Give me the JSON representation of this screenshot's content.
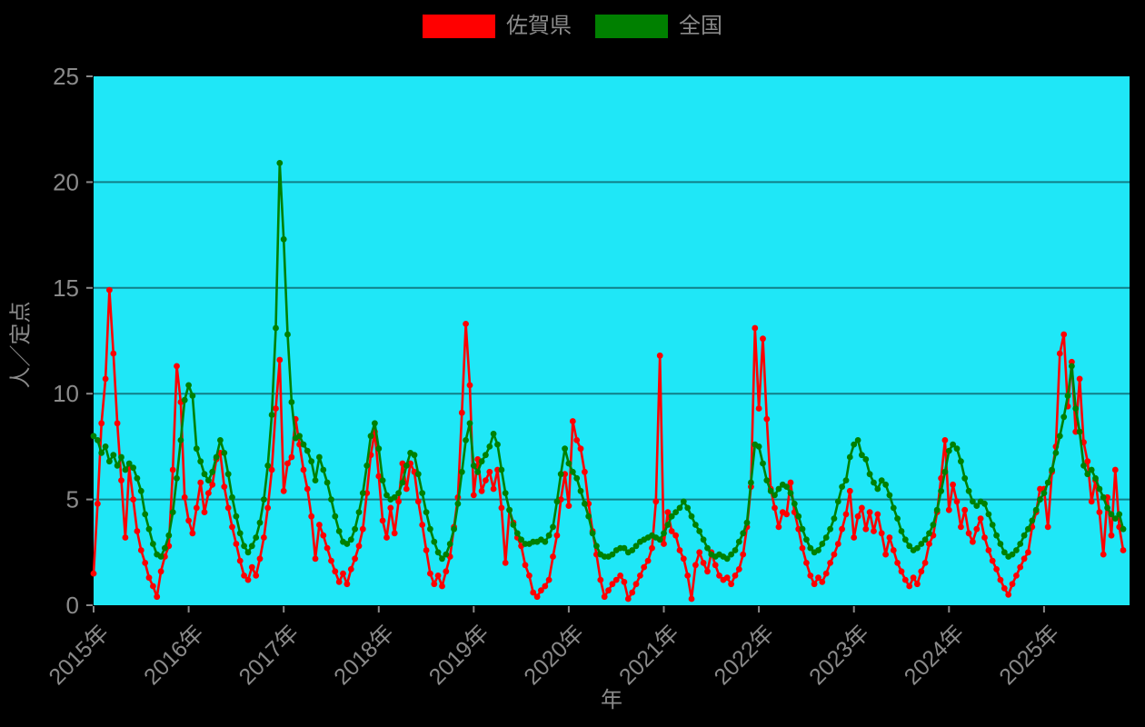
{
  "legend": {
    "position": "top-center",
    "items": [
      {
        "label": "佐賀県",
        "color": "#ff0000"
      },
      {
        "label": "全国",
        "color": "#008000"
      }
    ]
  },
  "chart_data": {
    "type": "line",
    "title": "",
    "xlabel": "年",
    "ylabel": "人／定点",
    "xlim": [
      2015.0,
      2025.9
    ],
    "ylim": [
      0,
      25
    ],
    "y_ticks": [
      0,
      5,
      10,
      15,
      20,
      25
    ],
    "x_ticks": [
      {
        "year": 2015,
        "label": "2015年"
      },
      {
        "year": 2016,
        "label": "2016年"
      },
      {
        "year": 2017,
        "label": "2017年"
      },
      {
        "year": 2018,
        "label": "2018年"
      },
      {
        "year": 2019,
        "label": "2019年"
      },
      {
        "year": 2020,
        "label": "2020年"
      },
      {
        "year": 2021,
        "label": "2021年"
      },
      {
        "year": 2022,
        "label": "2022年"
      },
      {
        "year": 2023,
        "label": "2023年"
      },
      {
        "year": 2024,
        "label": "2024年"
      },
      {
        "year": 2025,
        "label": "2025年"
      }
    ],
    "grid": "horizontal",
    "legend_position": "top-center",
    "colors": {
      "figure_bg": "#000000",
      "plot_bg": "#1fe7f7",
      "grid": "rgba(0,0,0,0.45)",
      "text": "#8a8a8a"
    },
    "marker": "circle",
    "x_start": 2015.0,
    "x_step_years": 0.0416667,
    "series": [
      {
        "key": "saga",
        "name": "佐賀県",
        "color": "#ff0000",
        "values": [
          1.5,
          4.8,
          8.6,
          10.7,
          14.9,
          11.9,
          8.6,
          5.9,
          3.2,
          6.5,
          5.0,
          3.5,
          2.6,
          2.0,
          1.3,
          0.9,
          0.4,
          1.6,
          2.3,
          2.8,
          6.4,
          11.3,
          9.6,
          5.1,
          4.0,
          3.4,
          4.6,
          5.8,
          4.4,
          5.3,
          5.7,
          6.9,
          7.2,
          5.6,
          4.6,
          3.7,
          2.9,
          2.1,
          1.4,
          1.2,
          1.8,
          1.4,
          2.2,
          3.2,
          4.6,
          6.4,
          9.3,
          11.6,
          5.4,
          6.7,
          7.0,
          8.8,
          7.6,
          6.4,
          5.5,
          4.2,
          2.2,
          3.8,
          3.3,
          2.7,
          2.1,
          1.6,
          1.1,
          1.5,
          1.0,
          1.7,
          2.2,
          2.8,
          3.6,
          5.3,
          7.1,
          8.2,
          6.1,
          4.0,
          3.2,
          4.6,
          3.4,
          4.9,
          6.7,
          5.5,
          6.7,
          6.3,
          4.9,
          3.8,
          2.6,
          1.5,
          1.0,
          1.4,
          0.9,
          1.6,
          2.3,
          3.7,
          5.1,
          9.1,
          13.3,
          10.4,
          5.2,
          6.9,
          5.4,
          5.9,
          6.3,
          5.5,
          6.4,
          4.6,
          2.0,
          4.5,
          3.9,
          3.2,
          2.8,
          1.9,
          1.4,
          0.6,
          0.4,
          0.7,
          0.9,
          1.2,
          2.3,
          3.3,
          5.0,
          6.2,
          4.7,
          8.7,
          7.8,
          7.4,
          6.3,
          4.8,
          3.5,
          2.4,
          1.2,
          0.4,
          0.7,
          1.0,
          1.2,
          1.4,
          1.1,
          0.3,
          0.6,
          1.0,
          1.4,
          1.8,
          2.1,
          2.7,
          4.9,
          11.8,
          2.9,
          4.4,
          3.5,
          3.3,
          2.6,
          2.2,
          1.4,
          0.3,
          1.9,
          2.5,
          2.0,
          1.6,
          2.5,
          1.9,
          1.4,
          1.2,
          1.3,
          1.0,
          1.4,
          1.7,
          2.4,
          3.7,
          5.6,
          13.1,
          9.3,
          12.6,
          8.8,
          5.5,
          4.6,
          3.7,
          4.4,
          4.3,
          5.8,
          4.4,
          3.6,
          2.7,
          2.0,
          1.4,
          1.0,
          1.3,
          1.1,
          1.5,
          2.0,
          2.4,
          2.9,
          3.6,
          4.3,
          5.4,
          3.2,
          4.2,
          4.6,
          3.6,
          4.4,
          3.5,
          4.3,
          3.4,
          2.4,
          3.2,
          2.6,
          2.0,
          1.6,
          1.2,
          0.9,
          1.3,
          1.0,
          1.6,
          2.0,
          2.9,
          3.3,
          4.4,
          6.0,
          7.8,
          4.5,
          5.7,
          4.9,
          3.7,
          4.5,
          3.4,
          3.0,
          3.6,
          4.1,
          3.2,
          2.6,
          2.1,
          1.7,
          1.2,
          0.8,
          0.5,
          1.0,
          1.4,
          1.8,
          2.2,
          2.5,
          3.7,
          4.4,
          5.5,
          5.5,
          3.7,
          6.3,
          7.5,
          11.9,
          12.8,
          9.4,
          11.5,
          8.2,
          10.7,
          7.7,
          6.8,
          4.9,
          5.9,
          4.4,
          2.4,
          5.1,
          3.3,
          6.4,
          3.7,
          2.6
        ]
      },
      {
        "key": "zenkoku",
        "name": "全国",
        "color": "#008000",
        "values": [
          8.0,
          7.8,
          7.2,
          7.5,
          6.8,
          7.1,
          6.6,
          7.0,
          6.4,
          6.7,
          6.5,
          6.0,
          5.4,
          4.3,
          3.6,
          2.9,
          2.4,
          2.3,
          2.7,
          3.3,
          4.4,
          6.0,
          7.8,
          9.7,
          10.4,
          9.9,
          7.4,
          6.8,
          6.2,
          5.9,
          6.3,
          7.0,
          7.8,
          7.2,
          6.2,
          5.1,
          4.2,
          3.4,
          2.8,
          2.5,
          2.8,
          3.2,
          3.9,
          5.0,
          6.6,
          9.0,
          13.1,
          20.9,
          17.3,
          12.8,
          9.6,
          7.9,
          8.0,
          7.6,
          7.3,
          6.8,
          5.9,
          7.0,
          6.4,
          5.8,
          5.0,
          4.2,
          3.5,
          3.0,
          2.9,
          3.1,
          3.6,
          4.4,
          5.3,
          6.6,
          8.0,
          8.6,
          7.4,
          5.9,
          5.2,
          5.0,
          5.1,
          5.3,
          5.8,
          6.6,
          7.2,
          7.1,
          6.2,
          5.3,
          4.4,
          3.6,
          3.0,
          2.5,
          2.2,
          2.4,
          2.9,
          3.6,
          4.8,
          6.3,
          7.8,
          8.6,
          6.6,
          6.3,
          6.8,
          7.1,
          7.5,
          8.1,
          7.6,
          6.4,
          5.3,
          4.5,
          3.8,
          3.4,
          3.1,
          2.9,
          2.9,
          3.0,
          3.0,
          3.1,
          3.0,
          3.3,
          3.7,
          4.9,
          6.2,
          7.4,
          6.7,
          6.3,
          6.0,
          5.4,
          4.8,
          4.2,
          3.4,
          2.8,
          2.4,
          2.3,
          2.3,
          2.4,
          2.6,
          2.7,
          2.7,
          2.5,
          2.6,
          2.8,
          3.0,
          3.1,
          3.2,
          3.3,
          3.2,
          3.1,
          3.4,
          3.8,
          4.2,
          4.4,
          4.6,
          4.9,
          4.6,
          4.2,
          3.8,
          3.5,
          3.1,
          2.7,
          2.4,
          2.3,
          2.4,
          2.3,
          2.2,
          2.4,
          2.6,
          3.0,
          3.4,
          3.9,
          5.8,
          7.6,
          7.5,
          6.7,
          5.9,
          5.4,
          5.2,
          5.5,
          5.7,
          5.6,
          5.3,
          4.8,
          4.2,
          3.6,
          3.1,
          2.7,
          2.5,
          2.6,
          2.9,
          3.2,
          3.6,
          4.1,
          4.9,
          5.6,
          5.9,
          7.0,
          7.6,
          7.8,
          7.1,
          6.9,
          6.2,
          5.8,
          5.5,
          5.9,
          5.7,
          5.2,
          4.6,
          4.1,
          3.5,
          3.1,
          2.8,
          2.6,
          2.7,
          2.9,
          3.1,
          3.4,
          3.8,
          4.5,
          5.4,
          6.3,
          7.3,
          7.6,
          7.4,
          6.8,
          6.0,
          5.4,
          4.9,
          4.7,
          4.9,
          4.8,
          4.3,
          3.8,
          3.3,
          2.9,
          2.5,
          2.3,
          2.4,
          2.6,
          2.9,
          3.3,
          3.6,
          4.0,
          4.5,
          5.0,
          5.3,
          5.8,
          6.4,
          7.2,
          8.0,
          8.9,
          9.9,
          11.3,
          9.3,
          8.2,
          6.6,
          6.2,
          6.4,
          6.0,
          5.5,
          5.1,
          4.6,
          4.3,
          4.1,
          4.3,
          3.6
        ]
      }
    ]
  }
}
